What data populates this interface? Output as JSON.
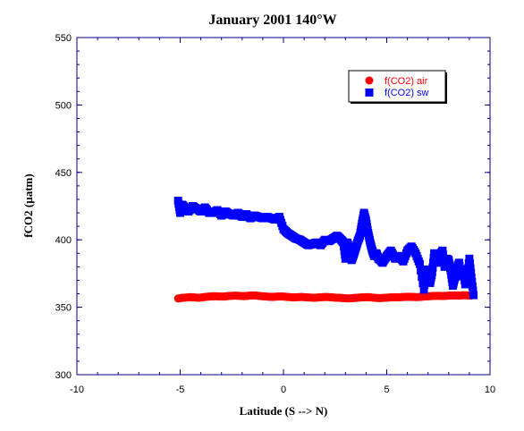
{
  "chart_data": {
    "type": "scatter",
    "title": "January 2001 140°W",
    "xlabel": "Latitude (S --> N)",
    "ylabel": "fCO2 (µatm)",
    "xlim": [
      -10,
      10
    ],
    "ylim": [
      300,
      550
    ],
    "xticks": [
      "-10",
      "-5",
      "0",
      "5",
      "10"
    ],
    "yticks": [
      "300",
      "350",
      "400",
      "450",
      "500",
      "550"
    ],
    "grid": false,
    "legend_position": "top-right",
    "series": [
      {
        "name": "f(CO2) air",
        "color": "#ff0000",
        "marker": "circle",
        "x": [
          -5.1,
          -4.9,
          -4.7,
          -4.5,
          -4.3,
          -4.1,
          -3.9,
          -3.7,
          -3.5,
          -3.3,
          -3.1,
          -2.9,
          -2.7,
          -2.5,
          -2.3,
          -2.1,
          -1.9,
          -1.7,
          -1.5,
          -1.3,
          -1.1,
          -0.9,
          -0.7,
          -0.5,
          -0.3,
          -0.1,
          0.1,
          0.3,
          0.5,
          0.7,
          0.9,
          1.1,
          1.3,
          1.5,
          1.7,
          1.9,
          2.1,
          2.3,
          2.5,
          2.7,
          2.9,
          3.1,
          3.3,
          3.5,
          3.7,
          3.9,
          4.1,
          4.3,
          4.5,
          4.7,
          4.9,
          5.1,
          5.3,
          5.5,
          5.7,
          5.9,
          6.1,
          6.3,
          6.5,
          6.7,
          6.9,
          7.1,
          7.3,
          7.5,
          7.7,
          7.9,
          8.1,
          8.3,
          8.5,
          8.7,
          8.9,
          9.1
        ],
        "y": [
          356.5,
          357,
          357.2,
          357.5,
          357.3,
          357,
          357.4,
          357.8,
          358,
          358.2,
          358,
          357.9,
          358.3,
          358.5,
          358.6,
          358.4,
          358.2,
          358.5,
          358.8,
          358.6,
          358.3,
          358,
          357.8,
          357.7,
          357.9,
          358,
          357.8,
          357.5,
          357.3,
          357.5,
          357.6,
          357.4,
          357.2,
          357,
          357.3,
          357.5,
          357.6,
          357.4,
          357.1,
          357,
          356.8,
          356.5,
          356.7,
          357,
          357.2,
          357.4,
          357.5,
          357.2,
          356.9,
          356.8,
          357,
          357.2,
          357.4,
          357.3,
          357.5,
          357.7,
          357.8,
          357.6,
          357.5,
          357.8,
          358,
          358.2,
          358.4,
          358.5,
          358.3,
          358.5,
          358.7,
          358.8,
          358.6,
          358.9,
          358.8,
          358.7
        ]
      },
      {
        "name": "f(CO2) sw",
        "color": "#0000ff",
        "marker": "square",
        "x": [
          -5.1,
          -5.0,
          -4.9,
          -4.8,
          -4.7,
          -4.6,
          -4.4,
          -4.2,
          -4.0,
          -3.8,
          -3.6,
          -3.4,
          -3.2,
          -3.0,
          -2.8,
          -2.6,
          -2.4,
          -2.2,
          -2.0,
          -1.8,
          -1.6,
          -1.4,
          -1.2,
          -1.0,
          -0.8,
          -0.6,
          -0.4,
          -0.2,
          0.0,
          0.2,
          0.4,
          0.6,
          0.8,
          1.0,
          1.2,
          1.4,
          1.6,
          1.8,
          2.0,
          2.2,
          2.4,
          2.6,
          2.8,
          2.9,
          3.0,
          3.1,
          3.2,
          3.3,
          3.4,
          3.5,
          3.6,
          3.7,
          3.8,
          3.9,
          4.0,
          4.1,
          4.2,
          4.3,
          4.4,
          4.5,
          4.6,
          4.7,
          4.8,
          5.0,
          5.2,
          5.4,
          5.6,
          5.8,
          6.0,
          6.2,
          6.4,
          6.6,
          6.8,
          6.9,
          7.0,
          7.1,
          7.2,
          7.3,
          7.4,
          7.5,
          7.6,
          7.7,
          7.8,
          7.9,
          8.0,
          8.1,
          8.2,
          8.3,
          8.4,
          8.5,
          8.6,
          8.7,
          8.8,
          8.9,
          9.0,
          9.1,
          9.2
        ],
        "y": [
          429,
          420,
          426,
          424,
          423,
          421,
          425,
          423,
          421,
          424,
          420,
          420,
          422,
          418,
          421,
          419,
          418,
          420,
          417,
          419,
          416,
          418,
          417,
          416,
          417,
          416,
          415,
          417,
          408,
          405,
          403,
          401,
          400,
          398,
          396,
          397,
          398,
          396,
          400,
          399,
          401,
          403,
          400,
          398,
          386,
          398,
          392,
          385,
          389,
          394,
          399,
          403,
          412,
          420,
          414,
          405,
          398,
          392,
          388,
          390,
          386,
          385,
          383,
          388,
          392,
          386,
          388,
          384,
          392,
          395,
          390,
          382,
          363,
          378,
          372,
          368,
          376,
          390,
          385,
          383,
          389,
          392,
          380,
          386,
          385,
          377,
          366,
          372,
          378,
          383,
          373,
          378,
          367,
          372,
          386,
          372,
          359
        ]
      }
    ]
  }
}
